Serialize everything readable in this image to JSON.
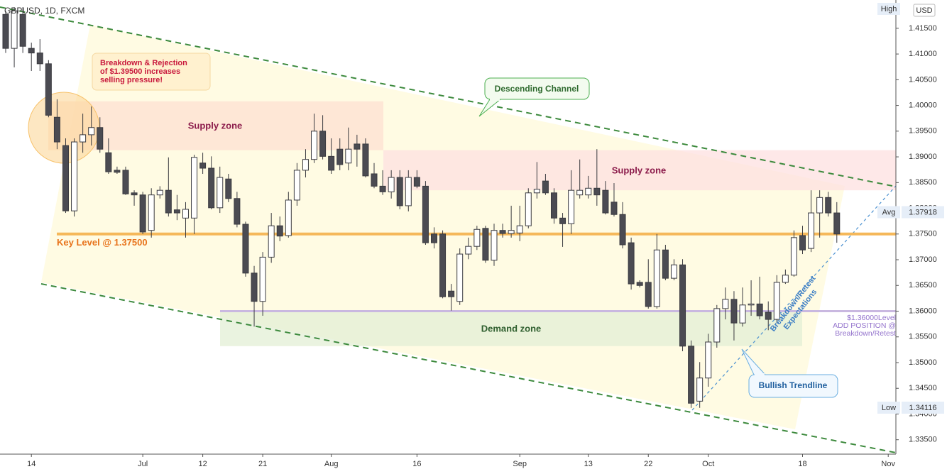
{
  "chart_data": {
    "type": "candlestick",
    "title": "GBPUSD, 1D, FXCM",
    "categories": [
      null,
      null,
      null,
      "14",
      null,
      null,
      null,
      null,
      null,
      null,
      null,
      null,
      null,
      null,
      null,
      null,
      "Jul",
      null,
      null,
      null,
      null,
      null,
      null,
      "12",
      null,
      null,
      null,
      null,
      null,
      null,
      "21",
      null,
      null,
      null,
      null,
      null,
      null,
      null,
      "Aug",
      null,
      null,
      null,
      null,
      null,
      null,
      null,
      null,
      null,
      "16",
      null,
      null,
      null,
      null,
      null,
      null,
      null,
      null,
      null,
      null,
      null,
      "Sep",
      null,
      null,
      null,
      null,
      null,
      null,
      null,
      "13",
      null,
      null,
      null,
      null,
      null,
      null,
      "22",
      null,
      null,
      null,
      null,
      null,
      null,
      "Oct",
      null,
      null,
      null,
      null,
      null,
      null,
      null,
      null,
      null,
      null,
      "18",
      null,
      null,
      null,
      null,
      null,
      null,
      null,
      null,
      null,
      "Nov"
    ],
    "open": [
      1.4177,
      1.4111,
      1.4177,
      1.4111,
      1.4102,
      1.4081,
      1.3977,
      1.3922,
      1.3795,
      1.3929,
      1.3943,
      1.3957,
      1.3908,
      1.3874,
      1.3874,
      1.383,
      1.3826,
      1.3757,
      1.3826,
      1.3835,
      1.3797,
      1.3781,
      1.3781,
      1.3888,
      1.3878,
      1.3801,
      1.3857,
      1.3819,
      1.3769,
      1.3674,
      1.3619,
      1.3705,
      1.3766,
      1.3747,
      1.3816,
      1.3874,
      1.3895,
      1.395,
      1.3901,
      1.3915,
      1.3888,
      1.3925,
      1.3925,
      1.3867,
      1.3843,
      1.3832,
      1.386,
      1.3805,
      1.386,
      1.3843,
      1.375,
      1.375,
      1.3639,
      1.3619,
      1.3711,
      1.3726,
      1.3761,
      1.3699,
      1.3757,
      1.3751,
      1.3752,
      1.3766,
      1.383,
      1.3853,
      1.383,
      1.3781,
      1.377,
      1.3826,
      1.3826,
      1.3839,
      1.3835,
      1.3812,
      1.3788,
      1.3733,
      1.3656,
      1.3656,
      1.3609,
      1.3719,
      1.3664,
      1.369,
      1.3532,
      1.3425,
      1.347,
      1.354,
      1.3605,
      1.3623,
      1.3577,
      1.3612,
      1.3614,
      1.3598,
      1.3584,
      1.3656,
      1.367,
      1.3747,
      1.3722,
      1.3791,
      1.3821,
      1.3791,
      null,
      null,
      null,
      null,
      null,
      null
    ],
    "high": [
      1.4184,
      1.4191,
      1.4191,
      1.4122,
      1.4129,
      1.4088,
      1.4012,
      1.3936,
      1.3936,
      1.3984,
      1.3998,
      1.3977,
      1.3936,
      1.3881,
      1.3881,
      1.3835,
      1.3832,
      1.3839,
      1.3843,
      1.3899,
      1.3826,
      1.3812,
      1.3904,
      1.3908,
      1.3901,
      1.3881,
      1.3867,
      1.3832,
      1.3774,
      1.3688,
      1.3715,
      1.3791,
      1.3784,
      1.3832,
      1.3888,
      1.3915,
      1.3984,
      1.3981,
      1.3936,
      1.3936,
      1.3957,
      1.3943,
      1.3936,
      1.3888,
      1.3874,
      1.3874,
      1.3874,
      1.3874,
      1.3874,
      1.3853,
      1.3763,
      1.3757,
      1.3653,
      1.3722,
      1.3743,
      1.3766,
      1.3766,
      1.377,
      1.377,
      1.3805,
      1.3805,
      1.3839,
      1.389,
      1.3867,
      1.3839,
      1.3791,
      1.3874,
      1.3895,
      1.3863,
      1.3915,
      1.3853,
      1.3849,
      1.3812,
      1.3743,
      1.366,
      1.3701,
      1.375,
      1.3729,
      1.3701,
      1.3701,
      1.3543,
      1.3501,
      1.3556,
      1.3612,
      1.3646,
      1.3639,
      1.3646,
      1.366,
      1.3667,
      1.3619,
      1.367,
      1.3681,
      1.3757,
      1.3766,
      1.3835,
      1.3835,
      1.3832,
      1.3812,
      null,
      null,
      null,
      null,
      null,
      null
    ],
    "low": [
      1.4102,
      1.4074,
      1.4102,
      1.4067,
      1.4067,
      1.3977,
      1.3915,
      1.3791,
      1.3784,
      1.3908,
      1.3922,
      1.3908,
      1.3867,
      1.3867,
      1.3826,
      1.3805,
      1.375,
      1.3743,
      1.3819,
      1.3784,
      1.3777,
      1.3743,
      1.375,
      1.3867,
      1.3798,
      1.3791,
      1.3812,
      1.3763,
      1.3667,
      1.357,
      1.3591,
      1.3694,
      1.3736,
      1.3743,
      1.3805,
      1.386,
      1.3888,
      1.3895,
      1.3867,
      1.3874,
      1.3874,
      1.3881,
      1.386,
      1.3839,
      1.3826,
      1.3819,
      1.3798,
      1.3794,
      1.3839,
      1.3729,
      1.3722,
      1.3625,
      1.3601,
      1.3612,
      1.3701,
      1.3719,
      1.3694,
      1.3688,
      1.3743,
      1.3743,
      1.3736,
      1.3761,
      1.3819,
      1.3826,
      1.377,
      1.3725,
      1.375,
      1.3819,
      1.3819,
      1.3805,
      1.3788,
      1.3784,
      1.3722,
      1.3642,
      1.3646,
      1.3605,
      1.3605,
      1.366,
      1.366,
      1.3522,
      1.3412,
      1.3412,
      1.3453,
      1.3529,
      1.3584,
      1.3543,
      1.357,
      1.3591,
      1.3584,
      1.3563,
      1.3577,
      1.3653,
      1.3667,
      1.3711,
      1.3715,
      1.3743,
      1.3784,
      1.3733,
      null,
      null,
      null,
      null,
      null,
      null
    ],
    "close": [
      1.4111,
      1.4184,
      1.4115,
      1.4102,
      1.4081,
      1.3981,
      1.3929,
      1.3795,
      1.3929,
      1.3943,
      1.3957,
      1.3915,
      1.3871,
      1.387,
      1.3828,
      1.3826,
      1.3754,
      1.3826,
      1.3835,
      1.3791,
      1.3791,
      1.3798,
      1.3899,
      1.3878,
      1.3801,
      1.386,
      1.3819,
      1.3769,
      1.3674,
      1.3619,
      1.3705,
      1.3766,
      1.3746,
      1.3816,
      1.3874,
      1.3895,
      1.395,
      1.3901,
      1.3874,
      1.3885,
      1.3915,
      1.3915,
      1.3863,
      1.3843,
      1.3832,
      1.386,
      1.3805,
      1.386,
      1.3843,
      1.3733,
      1.3733,
      1.3628,
      1.3628,
      1.3711,
      1.3726,
      1.3759,
      1.3699,
      1.3757,
      1.3751,
      1.3757,
      1.3766,
      1.383,
      1.3837,
      1.383,
      1.3781,
      1.377,
      1.3835,
      1.3835,
      1.3839,
      1.3826,
      1.3791,
      1.3788,
      1.3729,
      1.3653,
      1.365,
      1.3609,
      1.3719,
      1.3664,
      1.369,
      1.3532,
      1.3421,
      1.347,
      1.354,
      1.3605,
      1.3623,
      1.3577,
      1.3612,
      1.3614,
      1.3591,
      1.3584,
      1.3656,
      1.367,
      1.3743,
      1.3719,
      1.3791,
      1.3821,
      1.3791,
      1.375,
      null,
      null,
      null,
      null,
      null,
      null
    ],
    "up_color": "#ffffff",
    "down_color": "#4b4b52",
    "ylim": [
      1.3322,
      1.4205
    ],
    "yticks": [
      {
        "value": 1.335,
        "label": "1.33500"
      },
      {
        "value": 1.34,
        "label": "1.34000"
      },
      {
        "value": 1.345,
        "label": "1.34500"
      },
      {
        "value": 1.35,
        "label": "1.35000"
      },
      {
        "value": 1.355,
        "label": "1.35500"
      },
      {
        "value": 1.36,
        "label": "1.36000"
      },
      {
        "value": 1.365,
        "label": "1.36500"
      },
      {
        "value": 1.37,
        "label": "1.37000"
      },
      {
        "value": 1.375,
        "label": "1.37500"
      },
      {
        "value": 1.38,
        "label": "1.38000"
      },
      {
        "value": 1.385,
        "label": "1.38500"
      },
      {
        "value": 1.39,
        "label": "1.39000"
      },
      {
        "value": 1.395,
        "label": "1.39500"
      },
      {
        "value": 1.4,
        "label": "1.40000"
      },
      {
        "value": 1.405,
        "label": "1.40500"
      },
      {
        "value": 1.41,
        "label": "1.41000"
      },
      {
        "value": 1.415,
        "label": "1.41500"
      }
    ],
    "key_level": 1.375,
    "key_level_label": "Key Level @ 1.37500",
    "key_level_color": "#f5b85a",
    "level_line": 1.36,
    "level_line_color": "#c9b8e0",
    "zones": [
      {
        "label": "Supply zone",
        "top": 1.4008,
        "bottom": 1.3913,
        "color": "#fde0d2"
      },
      {
        "label": "Supply zone",
        "top": 1.3913,
        "bottom": 1.3835,
        "color": "#fde0e0"
      },
      {
        "label": "Demand zone",
        "top": 1.36,
        "bottom": 1.3532,
        "color": "#e3efd6"
      }
    ],
    "price_labels": [
      {
        "name": "Avg",
        "value": 1.37918
      },
      {
        "name": "Low",
        "value": 1.34116
      }
    ],
    "high_label": "High",
    "currency": "USD",
    "annotations": {
      "breakdown": [
        "Breakdown & Rejection",
        "of $1.39500 increases",
        "selling pressure!"
      ],
      "channel": "Descending Channel",
      "retest": [
        "Breakdown/Retest",
        "Expectations"
      ],
      "add_position": [
        "$1.36000Level",
        "ADD POSITION @",
        "Breakdown/Retest"
      ],
      "trendline": "Bullish Trendline"
    }
  }
}
